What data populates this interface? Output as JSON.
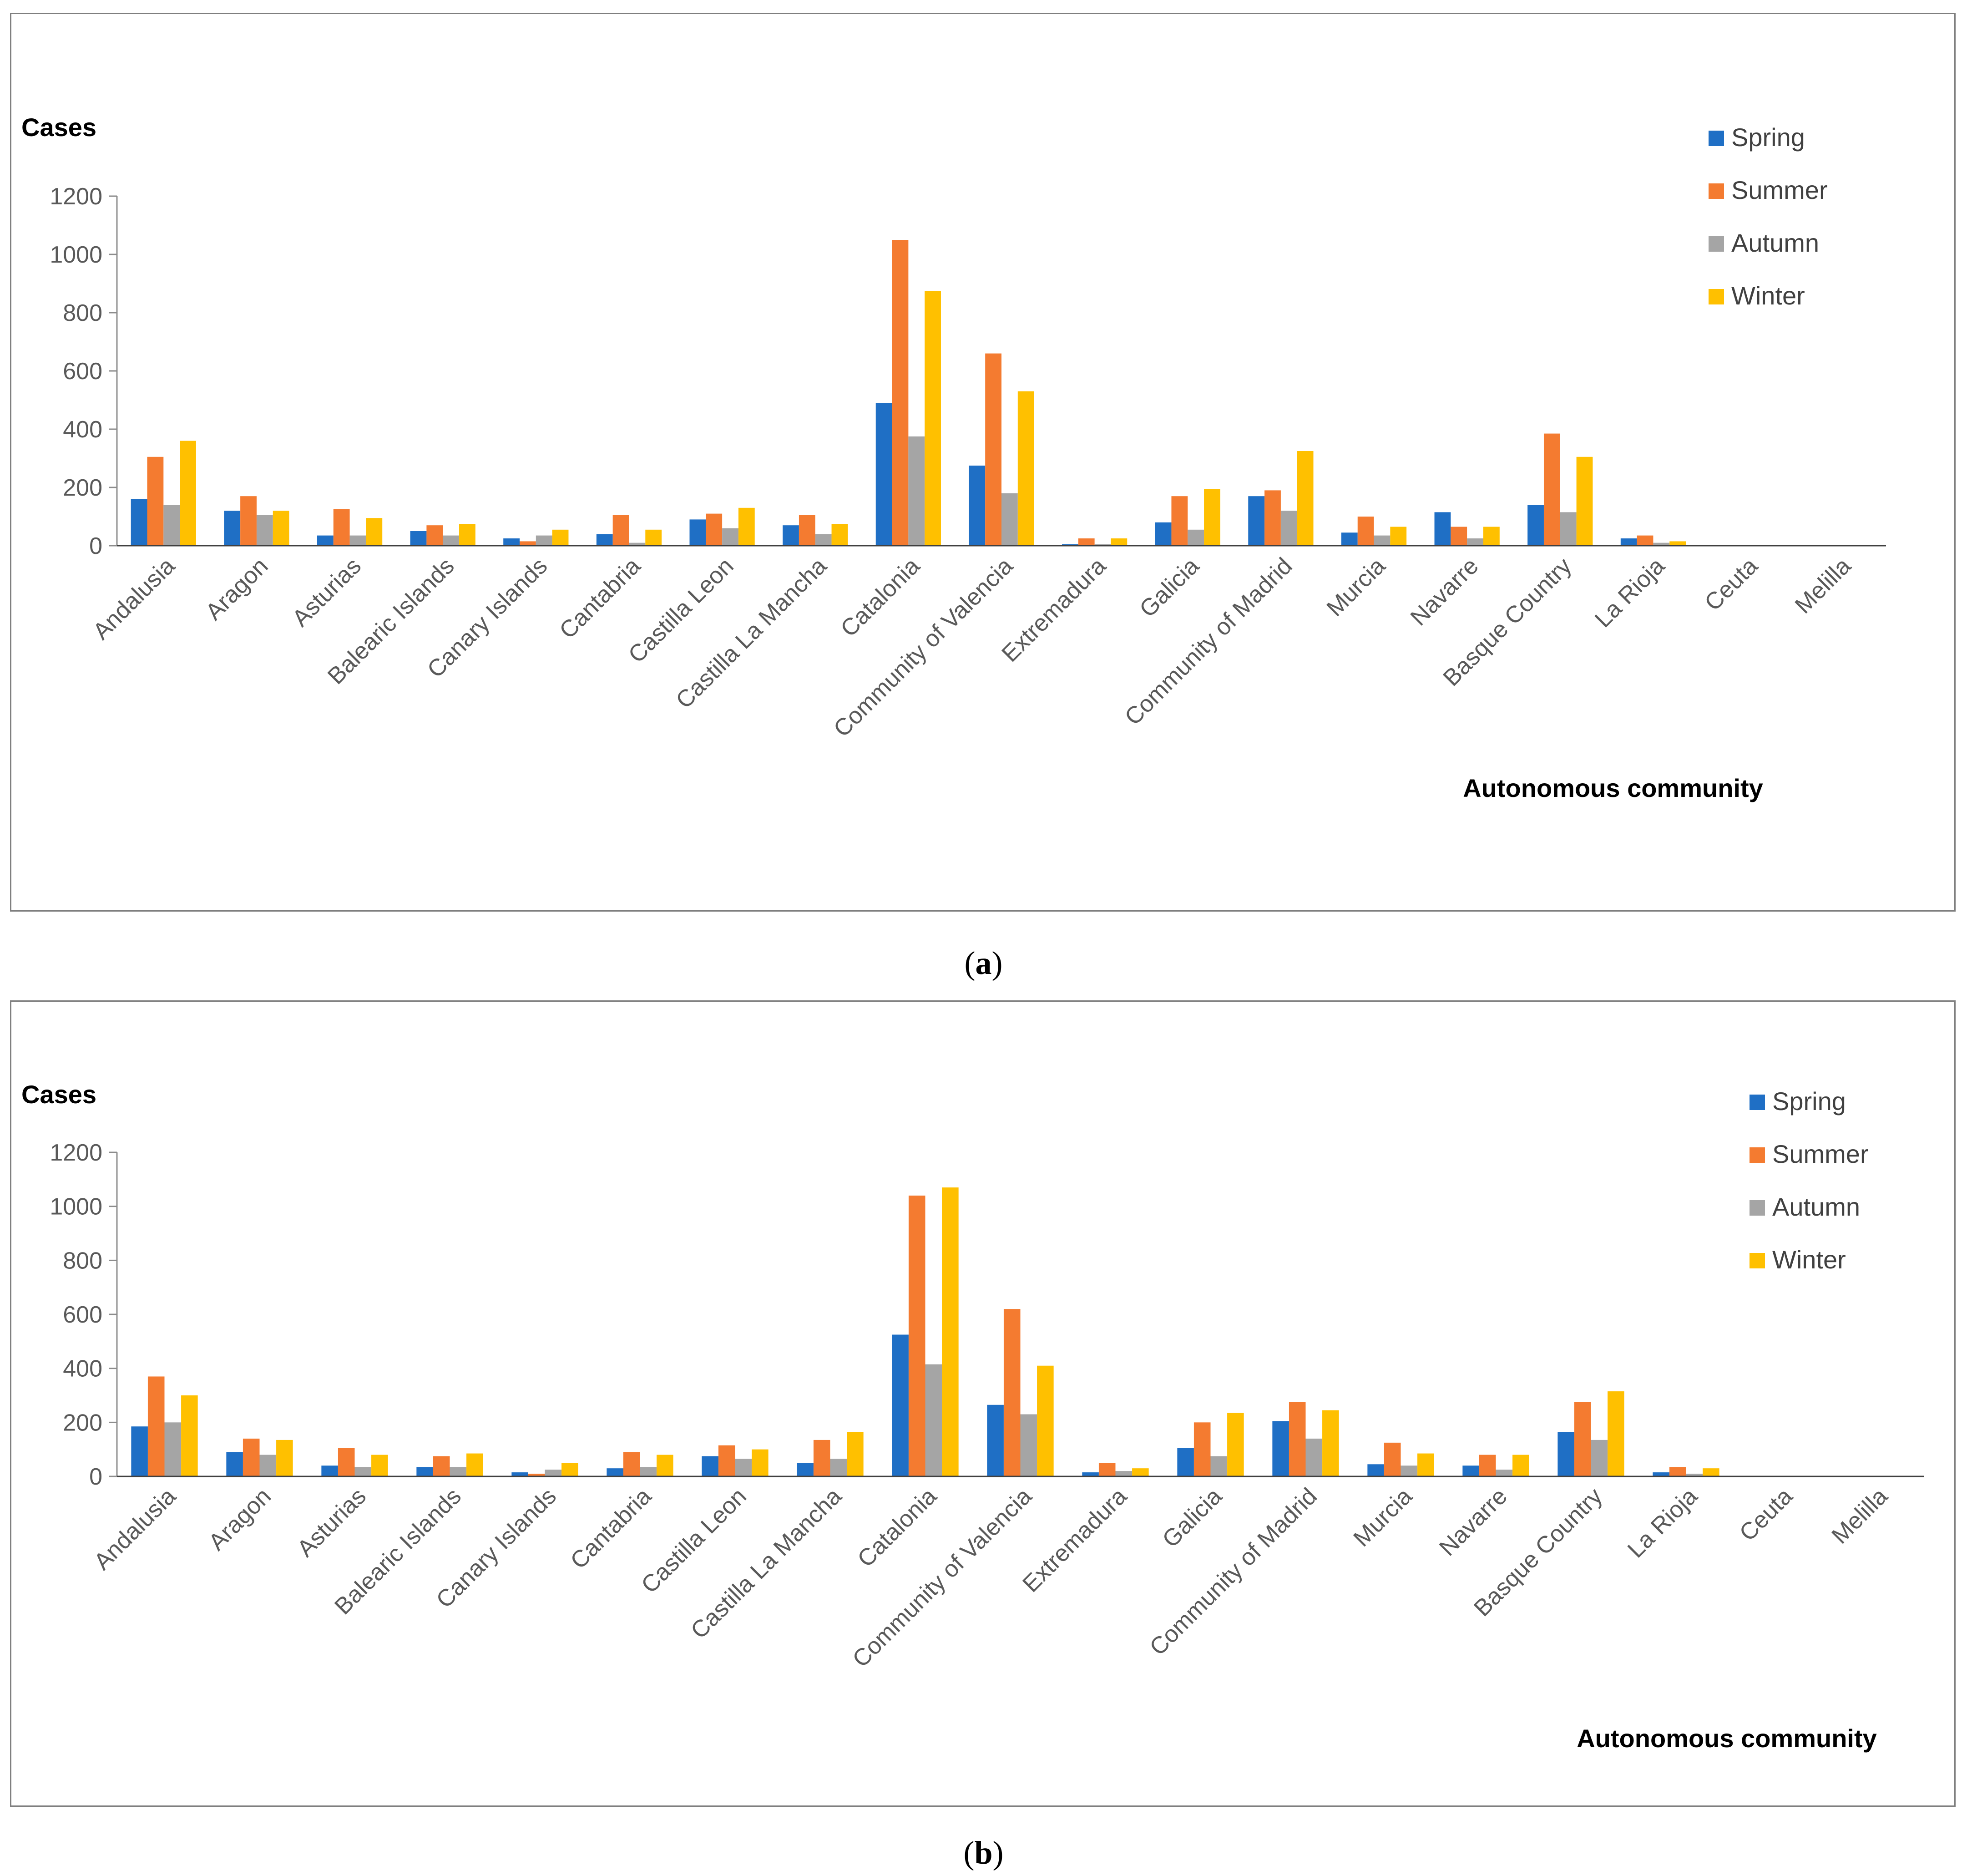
{
  "panels": [
    {
      "id": "a",
      "caption_open": "(",
      "caption_letter": "a",
      "caption_close": ")",
      "chart_data": {
        "type": "bar",
        "title": "",
        "ylabel": "Cases",
        "xlabel": "Autonomous community",
        "ylim": [
          0,
          1200
        ],
        "yticks": [
          0,
          200,
          400,
          600,
          800,
          1000,
          1200
        ],
        "legend_position": "top-right",
        "categories": [
          "Andalusia",
          "Aragon",
          "Asturias",
          "Balearic Islands",
          "Canary Islands",
          "Cantabria",
          "Castilla Leon",
          "Castilla La Mancha",
          "Catalonia",
          "Community of Valencia",
          "Extremadura",
          "Galicia",
          "Community of Madrid",
          "Murcia",
          "Navarre",
          "Basque Country",
          "La Rioja",
          "Ceuta",
          "Melilla"
        ],
        "series": [
          {
            "name": "Spring",
            "color": "#1f6fc5",
            "values": [
              160,
              120,
              35,
              50,
              25,
              40,
              90,
              70,
              490,
              275,
              5,
              80,
              170,
              45,
              115,
              140,
              25,
              0,
              0
            ]
          },
          {
            "name": "Summer",
            "color": "#f47b30",
            "values": [
              305,
              170,
              125,
              70,
              15,
              105,
              110,
              105,
              1050,
              660,
              25,
              170,
              190,
              100,
              65,
              385,
              35,
              0,
              0
            ]
          },
          {
            "name": "Autumn",
            "color": "#a5a5a5",
            "values": [
              140,
              105,
              35,
              35,
              35,
              10,
              60,
              40,
              375,
              180,
              5,
              55,
              120,
              35,
              25,
              115,
              10,
              0,
              0
            ]
          },
          {
            "name": "Winter",
            "color": "#ffc000",
            "values": [
              360,
              120,
              95,
              75,
              55,
              55,
              130,
              75,
              875,
              530,
              25,
              195,
              325,
              65,
              65,
              305,
              15,
              0,
              0
            ]
          }
        ]
      }
    },
    {
      "id": "b",
      "caption_open": "(",
      "caption_letter": "b",
      "caption_close": ")",
      "chart_data": {
        "type": "bar",
        "title": "",
        "ylabel": "Cases",
        "xlabel": "Autonomous community",
        "ylim": [
          0,
          1200
        ],
        "yticks": [
          0,
          200,
          400,
          600,
          800,
          1000,
          1200
        ],
        "legend_position": "top-right",
        "categories": [
          "Andalusia",
          "Aragon",
          "Asturias",
          "Balearic Islands",
          "Canary Islands",
          "Cantabria",
          "Castilla Leon",
          "Castilla La Mancha",
          "Catalonia",
          "Community of Valencia",
          "Extremadura",
          "Galicia",
          "Community of Madrid",
          "Murcia",
          "Navarre",
          "Basque Country",
          "La Rioja",
          "Ceuta",
          "Melilla"
        ],
        "series": [
          {
            "name": "Spring",
            "color": "#1f6fc5",
            "values": [
              185,
              90,
              40,
              35,
              15,
              30,
              75,
              50,
              525,
              265,
              15,
              105,
              205,
              45,
              40,
              165,
              15,
              0,
              0
            ]
          },
          {
            "name": "Summer",
            "color": "#f47b30",
            "values": [
              370,
              140,
              105,
              75,
              10,
              90,
              115,
              135,
              1040,
              620,
              50,
              200,
              275,
              125,
              80,
              275,
              35,
              0,
              0
            ]
          },
          {
            "name": "Autumn",
            "color": "#a5a5a5",
            "values": [
              200,
              80,
              35,
              35,
              25,
              35,
              65,
              65,
              415,
              230,
              20,
              75,
              140,
              40,
              25,
              135,
              10,
              0,
              0
            ]
          },
          {
            "name": "Winter",
            "color": "#ffc000",
            "values": [
              300,
              135,
              80,
              85,
              50,
              80,
              100,
              165,
              1070,
              410,
              30,
              235,
              245,
              85,
              80,
              315,
              30,
              0,
              0
            ]
          }
        ]
      }
    }
  ]
}
